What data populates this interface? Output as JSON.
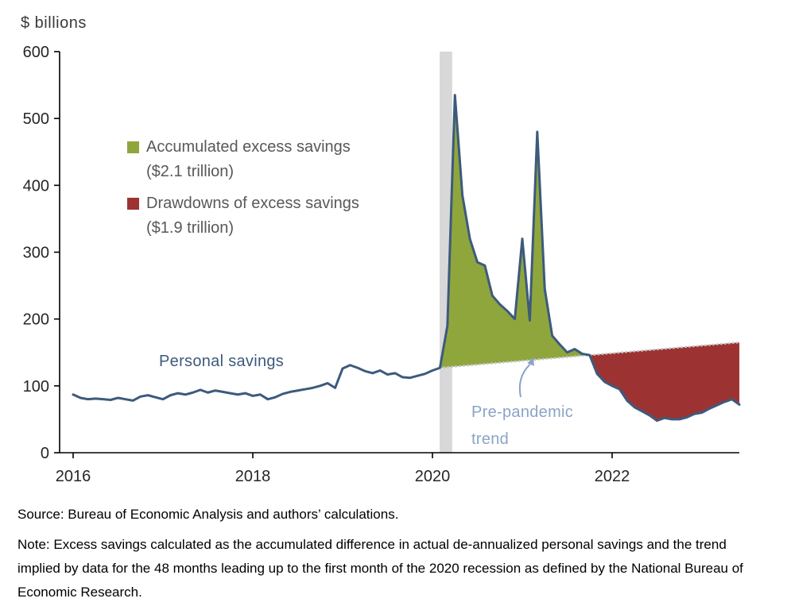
{
  "chart_data": {
    "type": "line",
    "title": "",
    "ylabel": "$ billions",
    "xlabel": "",
    "ylim": [
      0,
      600
    ],
    "yticks": [
      0,
      100,
      200,
      300,
      400,
      500,
      600
    ],
    "xticks": [
      2016,
      2018,
      2020,
      2022
    ],
    "x_start_year": 2016,
    "frequency": "monthly",
    "grid": false,
    "series": [
      {
        "name": "Personal savings",
        "color": "#3d5a7d",
        "values": [
          87,
          82,
          80,
          81,
          80,
          79,
          82,
          80,
          78,
          84,
          86,
          83,
          80,
          86,
          89,
          87,
          90,
          94,
          90,
          93,
          91,
          89,
          87,
          89,
          85,
          87,
          80,
          83,
          88,
          91,
          93,
          95,
          97,
          100,
          104,
          97,
          126,
          131,
          127,
          122,
          119,
          123,
          117,
          119,
          113,
          112,
          115,
          118,
          123,
          127,
          190,
          535,
          385,
          320,
          285,
          280,
          235,
          222,
          212,
          200,
          320,
          198,
          480,
          245,
          175,
          162,
          150,
          155,
          148,
          146,
          118,
          106,
          100,
          95,
          78,
          68,
          62,
          56,
          48,
          52,
          50,
          50,
          53,
          58,
          60,
          66,
          71,
          76,
          80,
          72
        ]
      }
    ],
    "trend": {
      "name": "Pre-pandemic trend",
      "start_index": 49,
      "start_value": 127,
      "end_index": 89,
      "end_value": 165
    },
    "crossing_index": 69,
    "recession_band_years": [
      2020.08,
      2020.22
    ],
    "legend": [
      {
        "label": "Accumulated excess savings",
        "amount": "($2.1 trillion)",
        "color": "#8fa63d"
      },
      {
        "label": "Drawdowns of excess savings",
        "amount": "($1.9 trillion)",
        "color": "#9c3332"
      }
    ],
    "annotations": {
      "series_label": "Personal savings",
      "trend_label_lines": [
        "Pre-pandemic",
        "trend"
      ]
    },
    "colors": {
      "line": "#3d5a7d",
      "accumulation_fill": "#8fa63d",
      "drawdown_fill": "#9c3332",
      "trend_dots": "#c6c6c6",
      "recession_band": "#d8d8d8",
      "axis": "#000000",
      "annotation_blue": "#8aa4c5",
      "legend_text": "#585857"
    }
  },
  "footer": {
    "source": "Source: Bureau of Economic Analysis and authors’ calculations.",
    "note": "Note: Excess savings calculated as the accumulated difference in actual de-annualized personal savings and the trend implied by data for the 48 months leading up to the first month of the 2020 recession as defined by the National Bureau of Economic Research."
  }
}
